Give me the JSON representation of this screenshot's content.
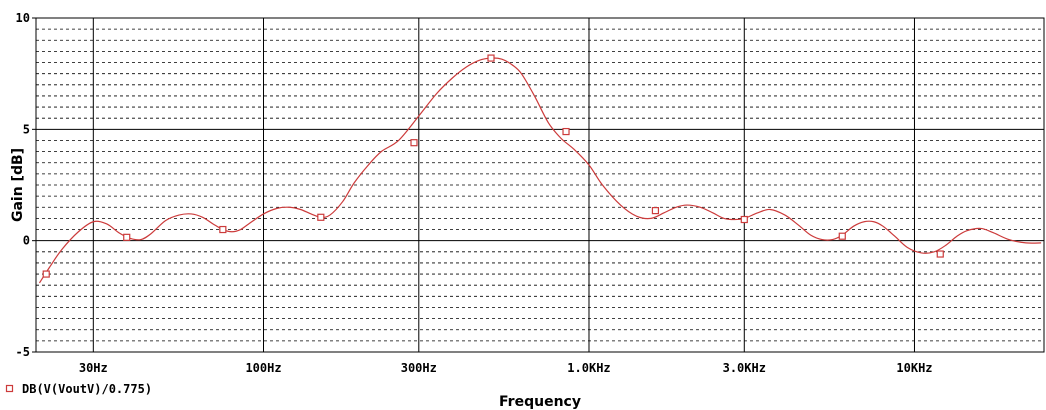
{
  "chart_data": {
    "type": "line",
    "title": "",
    "xlabel": "Frequency",
    "ylabel": "Gain [dB]",
    "xscale": "log",
    "xlim": [
      20,
      25000
    ],
    "ylim": [
      -5,
      10
    ],
    "x_ticks": [
      {
        "value": 30,
        "label": "30Hz"
      },
      {
        "value": 100,
        "label": "100Hz"
      },
      {
        "value": 300,
        "label": "300Hz"
      },
      {
        "value": 1000,
        "label": "1.0KHz"
      },
      {
        "value": 3000,
        "label": "3.0KHz"
      },
      {
        "value": 10000,
        "label": "10KHz"
      }
    ],
    "y_ticks": [
      {
        "value": 10,
        "label": "10"
      },
      {
        "value": 5,
        "label": "5"
      },
      {
        "value": 0,
        "label": "0"
      },
      {
        "value": -5,
        "label": "-5"
      }
    ],
    "y_grid_step": 0.5,
    "grid": true,
    "legend_position": "bottom-left",
    "series": [
      {
        "name": "DB(V(VoutV)/0.775)",
        "color": "#cc3b3b",
        "marker": "square",
        "x": [
          20.5,
          22,
          24,
          27,
          30,
          33,
          36,
          39,
          42,
          45,
          50,
          55,
          60,
          65,
          70,
          75,
          80,
          85,
          90,
          100,
          110,
          120,
          130,
          140,
          150,
          160,
          175,
          190,
          210,
          230,
          260,
          300,
          340,
          380,
          420,
          460,
          500,
          540,
          580,
          620,
          680,
          750,
          820,
          900,
          1000,
          1100,
          1250,
          1400,
          1550,
          1700,
          1850,
          2000,
          2200,
          2400,
          2600,
          2800,
          3000,
          3300,
          3600,
          4000,
          4400,
          4800,
          5200,
          5600,
          6000,
          6500,
          7000,
          7500,
          8000,
          8700,
          9500,
          10500,
          11500,
          12500,
          13500,
          14500,
          16000,
          17500,
          19500,
          22000,
          24500
        ],
        "y": [
          -1.9,
          -1.2,
          -0.4,
          0.4,
          0.85,
          0.75,
          0.35,
          0.1,
          0.05,
          0.3,
          0.9,
          1.15,
          1.2,
          1.05,
          0.75,
          0.5,
          0.4,
          0.5,
          0.75,
          1.2,
          1.45,
          1.5,
          1.4,
          1.2,
          1.05,
          1.15,
          1.75,
          2.6,
          3.4,
          4.0,
          4.5,
          5.6,
          6.6,
          7.3,
          7.8,
          8.1,
          8.2,
          8.15,
          7.9,
          7.5,
          6.5,
          5.3,
          4.6,
          4.1,
          3.4,
          2.5,
          1.6,
          1.1,
          1.0,
          1.25,
          1.5,
          1.6,
          1.5,
          1.25,
          1.0,
          0.95,
          1.0,
          1.25,
          1.4,
          1.15,
          0.7,
          0.25,
          0.05,
          0.05,
          0.25,
          0.65,
          0.85,
          0.85,
          0.65,
          0.2,
          -0.3,
          -0.55,
          -0.5,
          -0.2,
          0.2,
          0.45,
          0.55,
          0.35,
          0.05,
          -0.1,
          -0.1
        ],
        "markers": [
          {
            "x": 21.5,
            "y": -1.5
          },
          {
            "x": 38,
            "y": 0.15
          },
          {
            "x": 75,
            "y": 0.5
          },
          {
            "x": 150,
            "y": 1.05
          },
          {
            "x": 290,
            "y": 4.4
          },
          {
            "x": 500,
            "y": 8.2
          },
          {
            "x": 850,
            "y": 4.9
          },
          {
            "x": 1600,
            "y": 1.35
          },
          {
            "x": 3000,
            "y": 0.95
          },
          {
            "x": 6000,
            "y": 0.2
          },
          {
            "x": 12000,
            "y": -0.6
          }
        ]
      }
    ]
  }
}
